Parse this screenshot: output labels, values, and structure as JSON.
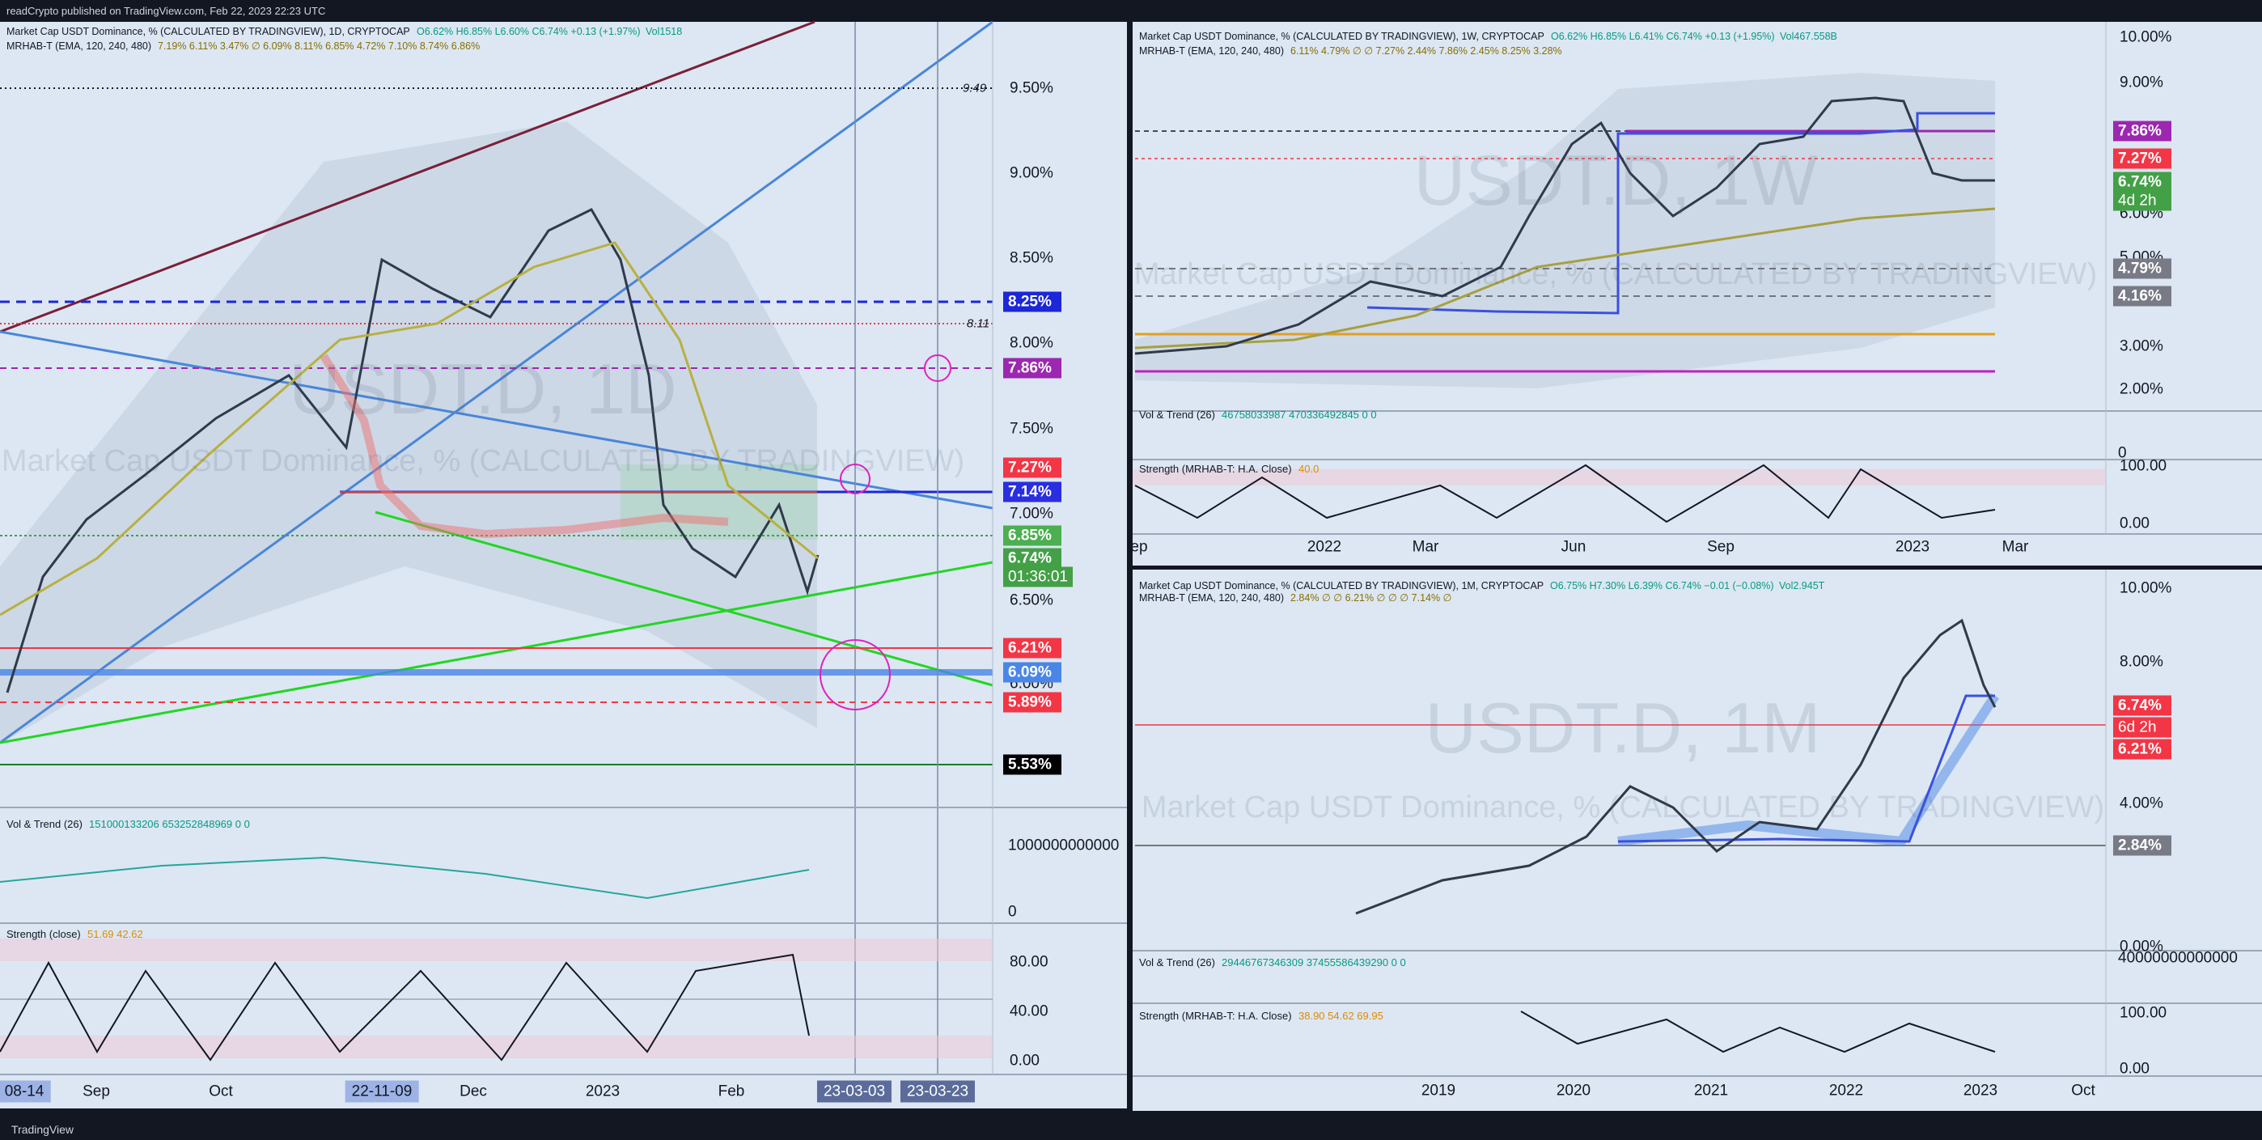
{
  "top_bar": "readCrypto published on TradingView.com, Feb 22, 2023 22:23 UTC",
  "footer": "TradingView",
  "panels": [
    {
      "header": "Market Cap USDT Dominance, % (CALCULATED BY TRADINGVIEW), 1D, CRYPTOCAP",
      "ohlc": "O6.62% H6.85% L6.60% C6.74% +0.13 (+1.97%)",
      "volume": "Vol1518",
      "indicator": "MRHAB-T (EMA, 120, 240, 480)",
      "indicator_values": "7.19% 6.11% 3.47% ∅ 6.09% 8.11% 6.85% 4.72% 7.10% 8.74% 6.86%",
      "watermark": "USDT.D, 1D",
      "watermark_subtitle": "Market Cap USDT Dominance, % (CALCULATED BY TRADINGVIEW)",
      "price_ticks": [
        "9.50%",
        "9.00%",
        "8.50%",
        "8.00%",
        "7.50%",
        "7.00%",
        "6.50%",
        "6.00%"
      ],
      "price_labels": [
        "8.25%",
        "7.86%",
        "7.27%",
        "7.14%",
        "6.85%",
        "6.74%",
        "6.21%",
        "6.09%",
        "5.89%",
        "5.53%"
      ],
      "countdown": "01:36:01",
      "line_labels": [
        "9.49",
        "8.11"
      ],
      "volume_pane": {
        "label": "Vol & Trend (26)",
        "values": "151000133206 653252848969 0 0",
        "ticks": [
          "1000000000000",
          "0"
        ]
      },
      "strength_pane": {
        "label": "Strength (close)",
        "values": "51.69 42.62",
        "ticks": [
          "80.00",
          "40.00",
          "0.00"
        ]
      },
      "time_labels": [
        "08-14",
        "Sep",
        "Oct",
        "22-11-09",
        "Dec",
        "2023",
        "Feb",
        "23-03-03",
        "23-03-23"
      ]
    },
    {
      "header": "Market Cap USDT Dominance, % (CALCULATED BY TRADINGVIEW), 1W, CRYPTOCAP",
      "ohlc": "O6.62% H6.85% L6.41% C6.74% +0.13 (+1.95%)",
      "volume": "Vol467.558B",
      "indicator": "MRHAB-T (EMA, 120, 240, 480)",
      "indicator_values": "6.11% 4.79% ∅ ∅ 7.27% 2.44% 7.86% 2.45% 8.25% 3.28%",
      "watermark": "USDT.D, 1W",
      "watermark_subtitle": "Market Cap USDT Dominance, % (CALCULATED BY TRADINGVIEW)",
      "price_ticks": [
        "10.00%",
        "9.00%",
        "6.00%",
        "5.00%",
        "3.00%",
        "2.00%"
      ],
      "price_labels": [
        "7.86%",
        "7.27%",
        "6.74%",
        "4.79%",
        "4.16%"
      ],
      "countdown": "4d 2h",
      "volume_pane": {
        "label": "Vol & Trend (26)",
        "values": "46758033987 470336492845 0 0",
        "ticks": [
          "0"
        ]
      },
      "strength_pane": {
        "label": "Strength (MRHAB-T: H.A. Close)",
        "values": "40.0",
        "ticks": [
          "100.00",
          "0.00"
        ]
      },
      "time_labels": [
        "ep",
        "2022",
        "Mar",
        "Jun",
        "Sep",
        "2023",
        "Mar"
      ]
    },
    {
      "header": "Market Cap USDT Dominance, % (CALCULATED BY TRADINGVIEW), 1M, CRYPTOCAP",
      "ohlc": "O6.75% H7.30% L6.39% C6.74% −0.01 (−0.08%)",
      "volume": "Vol2.945T",
      "indicator": "MRHAB-T (EMA, 120, 240, 480)",
      "indicator_values": "2.84% ∅ ∅ 6.21% ∅ ∅ ∅ 7.14% ∅",
      "watermark": "USDT.D, 1M",
      "watermark_subtitle": "Market Cap USDT Dominance, % (CALCULATED BY TRADINGVIEW)",
      "price_ticks": [
        "10.00%",
        "8.00%",
        "4.00%",
        "0.00%"
      ],
      "price_labels": [
        "6.74%",
        "6.21%",
        "2.84%"
      ],
      "countdown": "6d 2h",
      "volume_pane": {
        "label": "Vol & Trend (26)",
        "values": "29446767346309 37455586439290 0 0",
        "ticks": [
          "40000000000000"
        ]
      },
      "strength_pane": {
        "label": "Strength (MRHAB-T: H.A. Close)",
        "values": "38.90 54.62 69.95",
        "ticks": [
          "100.00",
          "0.00"
        ]
      },
      "time_labels": [
        "2019",
        "2020",
        "2021",
        "2022",
        "2023",
        "Oct"
      ]
    }
  ]
}
